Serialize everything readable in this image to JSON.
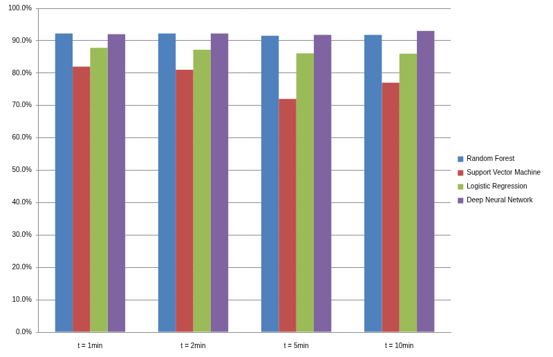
{
  "chart_data": {
    "type": "bar",
    "categories": [
      "t = 1min",
      "t = 2min",
      "t = 5min",
      "t = 10min"
    ],
    "series": [
      {
        "name": "Random Forest",
        "color": "#4f81bd",
        "values": [
          92.2,
          92.2,
          91.5,
          91.8
        ]
      },
      {
        "name": "Support Vector Machine",
        "color": "#c0504d",
        "values": [
          82.0,
          81.0,
          72.0,
          77.0
        ]
      },
      {
        "name": "Logistic Regression",
        "color": "#9bbb59",
        "values": [
          87.8,
          87.2,
          86.1,
          86.0
        ]
      },
      {
        "name": "Deep Neural Network",
        "color": "#8064a2",
        "values": [
          92.0,
          92.2,
          91.8,
          93.0
        ]
      }
    ],
    "ylim": [
      0,
      100
    ],
    "yticks": [
      {
        "value": 0,
        "label": "0.0%"
      },
      {
        "value": 10,
        "label": "10.0%"
      },
      {
        "value": 20,
        "label": "20.0%"
      },
      {
        "value": 30,
        "label": "30.0%"
      },
      {
        "value": 40,
        "label": "40.0%"
      },
      {
        "value": 50,
        "label": "50.0%"
      },
      {
        "value": 60,
        "label": "60.0%"
      },
      {
        "value": 70,
        "label": "70.0%"
      },
      {
        "value": 80,
        "label": "80.0%"
      },
      {
        "value": 90,
        "label": "90.0%"
      },
      {
        "value": 100,
        "label": "100.0%"
      }
    ],
    "grid": true,
    "legend": "right"
  }
}
